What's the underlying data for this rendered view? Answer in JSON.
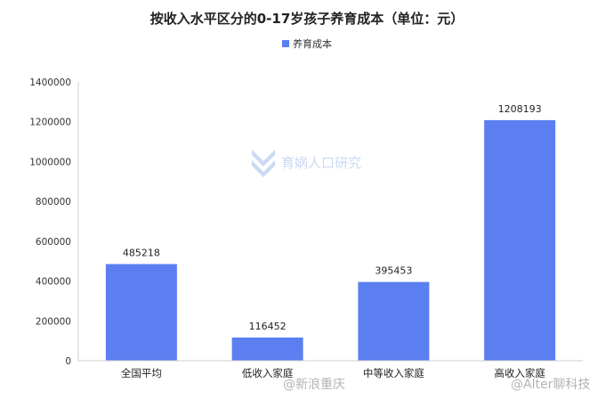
{
  "chart_data": {
    "type": "bar",
    "title": "按收入水平区分的0-17岁孩子养育成本（单位：元）",
    "categories": [
      "全国平均",
      "低收入家庭",
      "中等收入家庭",
      "高收入家庭"
    ],
    "series": [
      {
        "name": "养育成本",
        "values": [
          485218,
          116452,
          395453,
          1208193
        ],
        "color": "#5b7ff0"
      }
    ],
    "data_labels": [
      "485218",
      "116452",
      "395453",
      "1208193"
    ],
    "ylim": [
      0,
      1400000
    ],
    "yticks": [
      0,
      200000,
      400000,
      600000,
      800000,
      1000000,
      1200000,
      1400000
    ],
    "ytick_labels": [
      "0",
      "200000",
      "400000",
      "600000",
      "800000",
      "1000000",
      "1200000",
      "1400000"
    ],
    "grid": false,
    "legend_position": "top-center"
  },
  "watermarks": {
    "center_logo_text": "育娲人口研究",
    "bottom_left": "@新浪重庆",
    "bottom_right": "@Alter聊科技"
  }
}
